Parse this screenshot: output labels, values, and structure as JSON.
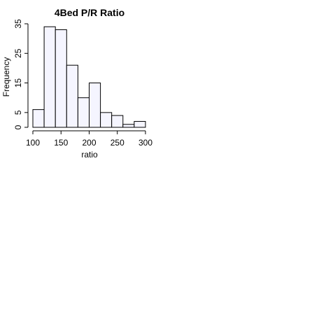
{
  "chart_data": {
    "type": "bar",
    "title": "4Bed P/R Ratio",
    "xlabel": "ratio",
    "ylabel": "Frequency",
    "bins": [
      {
        "start": 100,
        "end": 120,
        "count": 6
      },
      {
        "start": 120,
        "end": 140,
        "count": 34
      },
      {
        "start": 140,
        "end": 160,
        "count": 33
      },
      {
        "start": 160,
        "end": 180,
        "count": 21
      },
      {
        "start": 180,
        "end": 200,
        "count": 10
      },
      {
        "start": 200,
        "end": 220,
        "count": 15
      },
      {
        "start": 220,
        "end": 240,
        "count": 5
      },
      {
        "start": 240,
        "end": 260,
        "count": 4
      },
      {
        "start": 260,
        "end": 280,
        "count": 1
      },
      {
        "start": 280,
        "end": 300,
        "count": 2
      }
    ],
    "xticks": [
      "100",
      "150",
      "200",
      "250",
      "300"
    ],
    "yticks": [
      "0",
      "5",
      "15",
      "25",
      "35"
    ],
    "xlim": [
      100,
      300
    ],
    "ylim": [
      0,
      35
    ],
    "grid": false,
    "bar_color": "#F5F5FF",
    "edge_color": "#000000"
  }
}
